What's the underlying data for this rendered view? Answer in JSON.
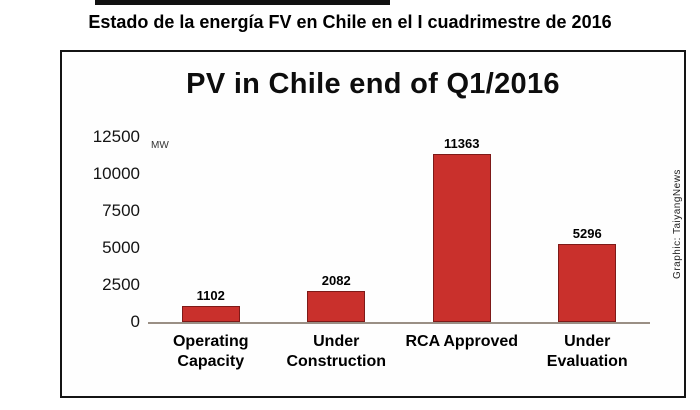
{
  "page": {
    "headline": "Estado de la energía FV en Chile en el I cuadrimestre de 2016"
  },
  "chart": {
    "title": "PV in Chile end of Q1/2016",
    "unit_label": "MW",
    "credit": "Graphic: TaiyangNews"
  },
  "chart_data": {
    "type": "bar",
    "title": "PV in Chile end of Q1/2016",
    "categories": [
      "Operating Capacity",
      "Under Construction",
      "RCA Approved",
      "Under Evaluation"
    ],
    "category_display": [
      "Operating\nCapacity",
      "Under\nConstruction",
      "RCA Approved",
      "Under\nEvaluation"
    ],
    "values": [
      1102,
      2082,
      11363,
      5296
    ],
    "xlabel": "",
    "ylabel": "MW",
    "ylim": [
      0,
      12500
    ],
    "yticks": [
      0,
      2500,
      5000,
      7500,
      10000,
      12500
    ],
    "grid": false,
    "legend": false,
    "bar_color": "#c9302c",
    "bar_border_color": "#7d1a18",
    "annotation": "Graphic: TaiyangNews"
  }
}
